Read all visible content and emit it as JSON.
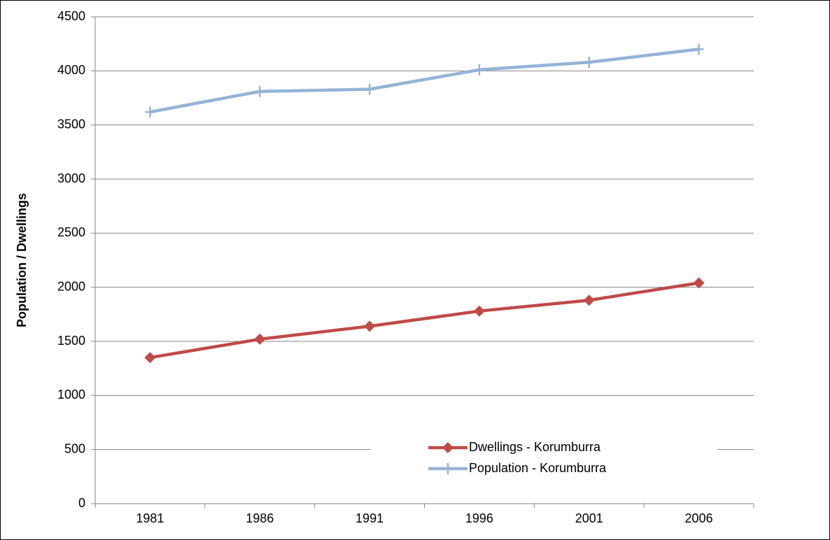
{
  "chart_data": {
    "type": "line",
    "ylabel": "Population / Dwellings",
    "categories": [
      "1981",
      "1986",
      "1991",
      "1996",
      "2001",
      "2006"
    ],
    "series": [
      {
        "name": "Dwellings - Korumburra",
        "color": "#be4b48",
        "marker": "diamond",
        "values": [
          1350,
          1520,
          1640,
          1780,
          1880,
          2040
        ]
      },
      {
        "name": "Population - Korumburra",
        "color": "#95b3d7",
        "marker": "plus",
        "values": [
          3620,
          3810,
          3830,
          4010,
          4080,
          4200
        ]
      }
    ],
    "ylim": [
      0,
      4500
    ],
    "yticks": [
      0,
      500,
      1000,
      1500,
      2000,
      2500,
      3000,
      3500,
      4000,
      4500
    ],
    "grid": true,
    "legend": "lower right"
  }
}
